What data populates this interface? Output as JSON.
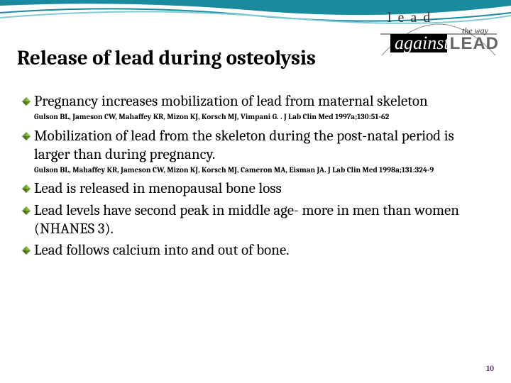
{
  "title": "Release of lead during osteolysis",
  "logo": {
    "lead_top": "l e a d",
    "the_way": "the way",
    "against": "against",
    "lead_big": "LEAD"
  },
  "wave": {
    "outer_color": "#1a8a9e",
    "inner_color": "#7fcbd8"
  },
  "diamond_colors": {
    "top": "#6b9e2f",
    "right": "#8fb84a",
    "bottom": "#5b8a1f",
    "left": "#4a7018"
  },
  "bullets": [
    {
      "text": "Pregnancy increases mobilization of lead from maternal skeleton",
      "citation": "Gulson BL, Jameson CW, Mahaffey KR, Mizon KJ, Korsch MJ, Vimpani G. . J Lab Clin Med 1997a;130:51-62"
    },
    {
      "text": "Mobilization of lead from the skeleton during the post-natal period is larger than during pregnancy.",
      "citation": "Gulson BL, Mahaffey KR, Jameson CW, Mizon KJ, Korsch MJ, Cameron MA, Eisman JA. J Lab Clin Med 1998a;131:324-9"
    },
    {
      "text": "Lead is released in menopausal bone loss",
      "citation": null
    },
    {
      "text": "Lead levels have second peak in middle age- more in men than women (NHANES 3).",
      "citation": null
    },
    {
      "text": "Lead follows calcium into and out of bone.",
      "citation": null
    }
  ],
  "page_number": "10"
}
